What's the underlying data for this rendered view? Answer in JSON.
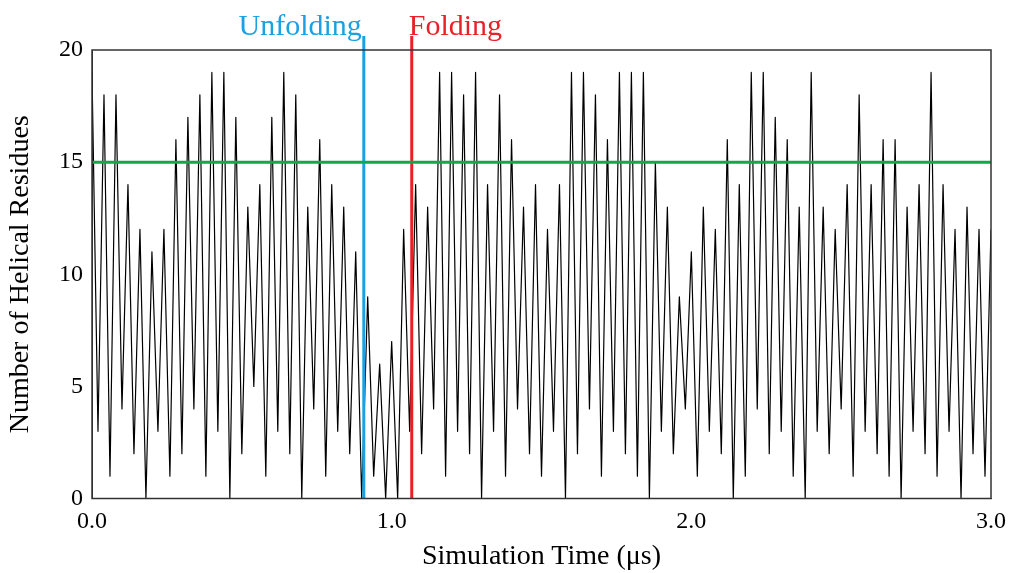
{
  "chart_data": {
    "type": "line",
    "xlabel": "Simulation Time (μs)",
    "ylabel": "Number of Helical Residues",
    "xlim": [
      0,
      3.0
    ],
    "ylim": [
      0,
      20
    ],
    "xticks": [
      {
        "value": 0,
        "label": "0.0"
      },
      {
        "value": 1,
        "label": "1.0"
      },
      {
        "value": 2,
        "label": "2.0"
      },
      {
        "value": 3,
        "label": "3.0"
      }
    ],
    "yticks": [
      0,
      5,
      10,
      15,
      20
    ],
    "grid": false,
    "legend": false,
    "marker": "none",
    "line_style": "solid",
    "x": [
      0,
      0.02,
      0.04,
      0.06,
      0.08,
      0.1,
      0.12,
      0.14,
      0.16,
      0.18,
      0.2,
      0.22,
      0.24,
      0.26,
      0.28,
      0.3,
      0.32,
      0.34,
      0.36,
      0.38,
      0.4,
      0.42,
      0.44,
      0.46,
      0.48,
      0.5,
      0.52,
      0.54,
      0.56,
      0.58,
      0.6,
      0.62,
      0.64,
      0.66,
      0.68,
      0.7,
      0.72,
      0.74,
      0.76,
      0.78,
      0.8,
      0.82,
      0.84,
      0.86,
      0.88,
      0.9,
      0.92,
      0.94,
      0.96,
      0.98,
      1,
      1.02,
      1.04,
      1.06,
      1.08,
      1.1,
      1.12,
      1.14,
      1.16,
      1.18,
      1.2,
      1.22,
      1.24,
      1.26,
      1.28,
      1.3,
      1.32,
      1.34,
      1.36,
      1.38,
      1.4,
      1.42,
      1.44,
      1.46,
      1.48,
      1.5,
      1.52,
      1.54,
      1.56,
      1.58,
      1.6,
      1.62,
      1.64,
      1.66,
      1.68,
      1.7,
      1.72,
      1.74,
      1.76,
      1.78,
      1.8,
      1.82,
      1.84,
      1.86,
      1.88,
      1.9,
      1.92,
      1.94,
      1.96,
      1.98,
      2,
      2.02,
      2.04,
      2.06,
      2.08,
      2.1,
      2.12,
      2.14,
      2.16,
      2.18,
      2.2,
      2.22,
      2.24,
      2.26,
      2.28,
      2.3,
      2.32,
      2.34,
      2.36,
      2.38,
      2.4,
      2.42,
      2.44,
      2.46,
      2.48,
      2.5,
      2.52,
      2.54,
      2.56,
      2.58,
      2.6,
      2.62,
      2.64,
      2.66,
      2.68,
      2.7,
      2.72,
      2.74,
      2.76,
      2.78,
      2.8,
      2.82,
      2.84,
      2.86,
      2.88,
      2.9,
      2.92,
      2.94,
      2.96,
      2.98,
      3
    ],
    "series": [
      {
        "color": "#000000",
        "values": [
          19,
          3,
          18,
          1,
          18,
          4,
          14,
          2,
          12,
          0,
          11,
          3,
          12,
          1,
          16,
          2,
          17,
          4,
          18,
          1,
          19,
          3,
          19,
          0,
          17,
          2,
          13,
          5,
          14,
          1,
          17,
          3,
          19,
          2,
          18,
          0,
          13,
          4,
          16,
          1,
          14,
          3,
          13,
          2,
          11,
          0,
          9,
          1,
          6,
          0,
          7,
          0,
          12,
          3,
          14,
          2,
          13,
          4,
          19,
          1,
          19,
          3,
          18,
          2,
          19,
          0,
          14,
          3,
          18,
          1,
          16,
          4,
          13,
          2,
          14,
          1,
          12,
          3,
          14,
          0,
          19,
          2,
          19,
          4,
          18,
          1,
          16,
          3,
          19,
          2,
          19,
          1,
          19,
          0,
          15,
          3,
          13,
          2,
          9,
          4,
          11,
          1,
          13,
          3,
          12,
          2,
          16,
          0,
          14,
          1,
          19,
          4,
          19,
          2,
          17,
          3,
          16,
          1,
          13,
          0,
          19,
          3,
          13,
          2,
          12,
          4,
          14,
          1,
          18,
          3,
          14,
          2,
          16,
          1,
          16,
          0,
          13,
          3,
          14,
          2,
          19,
          1,
          14,
          3,
          12,
          0,
          13,
          2,
          12,
          1,
          12
        ]
      }
    ],
    "ref_lines": [
      {
        "axis": "x",
        "value": 0.907,
        "label": "Unfolding",
        "color": "#1ba1e2"
      },
      {
        "axis": "x",
        "value": 1.067,
        "label": "Folding",
        "color": "#e8202a"
      },
      {
        "axis": "y",
        "value": 15,
        "color": "#12a84a"
      }
    ]
  }
}
